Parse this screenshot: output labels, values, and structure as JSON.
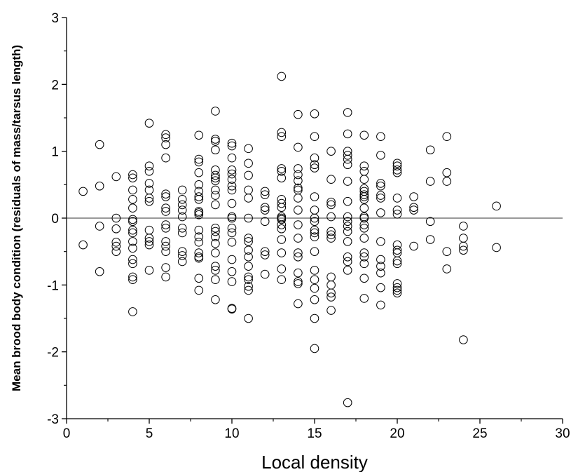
{
  "chart_data": {
    "type": "scatter",
    "title": "",
    "xlabel": "Local density",
    "ylabel": "Mean brood body condition (residuals of mass/tarsus length)",
    "xlim": [
      0,
      30
    ],
    "ylim": [
      -3,
      3
    ],
    "x_ticks": [
      "0",
      "5",
      "10",
      "15",
      "20",
      "25",
      "30"
    ],
    "y_ticks": [
      "-3",
      "-2",
      "-1",
      "0",
      "1",
      "2",
      "3"
    ],
    "reference_line_y": 0,
    "grid": false,
    "marker": "open-circle",
    "series": [
      {
        "points": [
          [
            1,
            0.4
          ],
          [
            1,
            -0.4
          ],
          [
            2,
            1.1
          ],
          [
            2,
            0.48
          ],
          [
            2,
            -0.12
          ],
          [
            2,
            -0.8
          ],
          [
            3,
            0.62
          ],
          [
            3,
            0.0
          ],
          [
            3,
            -0.16
          ],
          [
            3,
            -0.36
          ],
          [
            3,
            -0.42
          ],
          [
            3,
            -0.5
          ],
          [
            4,
            0.65
          ],
          [
            4,
            0.6
          ],
          [
            4,
            0.42
          ],
          [
            4,
            0.28
          ],
          [
            4,
            0.15
          ],
          [
            4,
            -0.02
          ],
          [
            4,
            -0.05
          ],
          [
            4,
            -0.18
          ],
          [
            4,
            -0.22
          ],
          [
            4,
            -0.35
          ],
          [
            4,
            -0.45
          ],
          [
            4,
            -0.62
          ],
          [
            4,
            -0.68
          ],
          [
            4,
            -0.88
          ],
          [
            4,
            -0.92
          ],
          [
            4,
            -1.4
          ],
          [
            5,
            1.42
          ],
          [
            5,
            0.78
          ],
          [
            5,
            0.7
          ],
          [
            5,
            0.52
          ],
          [
            5,
            0.42
          ],
          [
            5,
            0.3
          ],
          [
            5,
            0.25
          ],
          [
            5,
            -0.18
          ],
          [
            5,
            -0.3
          ],
          [
            5,
            -0.35
          ],
          [
            5,
            -0.4
          ],
          [
            5,
            -0.78
          ],
          [
            6,
            1.25
          ],
          [
            6,
            1.2
          ],
          [
            6,
            1.1
          ],
          [
            6,
            0.9
          ],
          [
            6,
            0.36
          ],
          [
            6,
            0.32
          ],
          [
            6,
            0.15
          ],
          [
            6,
            0.1
          ],
          [
            6,
            -0.1
          ],
          [
            6,
            -0.15
          ],
          [
            6,
            -0.35
          ],
          [
            6,
            -0.42
          ],
          [
            6,
            -0.5
          ],
          [
            6,
            -0.74
          ],
          [
            6,
            -0.88
          ],
          [
            7,
            0.42
          ],
          [
            7,
            0.28
          ],
          [
            7,
            0.2
          ],
          [
            7,
            0.12
          ],
          [
            7,
            0.02
          ],
          [
            7,
            -0.15
          ],
          [
            7,
            -0.22
          ],
          [
            7,
            -0.5
          ],
          [
            7,
            -0.56
          ],
          [
            7,
            -0.65
          ],
          [
            8,
            1.24
          ],
          [
            8,
            0.88
          ],
          [
            8,
            0.84
          ],
          [
            8,
            0.68
          ],
          [
            8,
            0.5
          ],
          [
            8,
            0.4
          ],
          [
            8,
            0.32
          ],
          [
            8,
            0.28
          ],
          [
            8,
            0.1
          ],
          [
            8,
            0.08
          ],
          [
            8,
            0.05
          ],
          [
            8,
            -0.18
          ],
          [
            8,
            -0.28
          ],
          [
            8,
            -0.36
          ],
          [
            8,
            -0.52
          ],
          [
            8,
            -0.58
          ],
          [
            8,
            -0.6
          ],
          [
            8,
            -0.9
          ],
          [
            8,
            -1.08
          ],
          [
            9,
            1.6
          ],
          [
            9,
            1.18
          ],
          [
            9,
            1.15
          ],
          [
            9,
            1.02
          ],
          [
            9,
            0.72
          ],
          [
            9,
            0.64
          ],
          [
            9,
            0.6
          ],
          [
            9,
            0.56
          ],
          [
            9,
            0.42
          ],
          [
            9,
            0.34
          ],
          [
            9,
            0.2
          ],
          [
            9,
            -0.15
          ],
          [
            9,
            -0.2
          ],
          [
            9,
            -0.28
          ],
          [
            9,
            -0.38
          ],
          [
            9,
            -0.52
          ],
          [
            9,
            -0.72
          ],
          [
            9,
            -0.78
          ],
          [
            9,
            -0.92
          ],
          [
            9,
            -1.22
          ],
          [
            10,
            1.12
          ],
          [
            10,
            1.08
          ],
          [
            10,
            0.9
          ],
          [
            10,
            0.72
          ],
          [
            10,
            0.66
          ],
          [
            10,
            0.58
          ],
          [
            10,
            0.48
          ],
          [
            10,
            0.42
          ],
          [
            10,
            0.22
          ],
          [
            10,
            0.02
          ],
          [
            10,
            0.0
          ],
          [
            10,
            -0.15
          ],
          [
            10,
            -0.22
          ],
          [
            10,
            -0.36
          ],
          [
            10,
            -0.62
          ],
          [
            10,
            -0.8
          ],
          [
            10,
            -0.95
          ],
          [
            10,
            -1.35
          ],
          [
            10,
            -1.36
          ],
          [
            11,
            1.04
          ],
          [
            11,
            0.82
          ],
          [
            11,
            0.64
          ],
          [
            11,
            0.42
          ],
          [
            11,
            0.3
          ],
          [
            11,
            0.0
          ],
          [
            11,
            -0.3
          ],
          [
            11,
            -0.35
          ],
          [
            11,
            -0.48
          ],
          [
            11,
            -0.58
          ],
          [
            11,
            -0.72
          ],
          [
            11,
            -0.88
          ],
          [
            11,
            -0.92
          ],
          [
            11,
            -1.02
          ],
          [
            11,
            -1.08
          ],
          [
            11,
            -1.5
          ],
          [
            12,
            0.4
          ],
          [
            12,
            0.35
          ],
          [
            12,
            0.16
          ],
          [
            12,
            0.12
          ],
          [
            12,
            -0.05
          ],
          [
            12,
            -0.5
          ],
          [
            12,
            -0.55
          ],
          [
            12,
            -0.84
          ],
          [
            13,
            2.12
          ],
          [
            13,
            1.28
          ],
          [
            13,
            1.22
          ],
          [
            13,
            0.74
          ],
          [
            13,
            0.7
          ],
          [
            13,
            0.6
          ],
          [
            13,
            0.28
          ],
          [
            13,
            0.22
          ],
          [
            13,
            0.16
          ],
          [
            13,
            0.02
          ],
          [
            13,
            0.0
          ],
          [
            13,
            -0.02
          ],
          [
            13,
            -0.1
          ],
          [
            13,
            -0.16
          ],
          [
            13,
            -0.32
          ],
          [
            13,
            -0.52
          ],
          [
            13,
            -0.76
          ],
          [
            13,
            -0.92
          ],
          [
            14,
            1.55
          ],
          [
            14,
            1.06
          ],
          [
            14,
            0.74
          ],
          [
            14,
            0.65
          ],
          [
            14,
            0.56
          ],
          [
            14,
            0.45
          ],
          [
            14,
            0.42
          ],
          [
            14,
            0.3
          ],
          [
            14,
            0.12
          ],
          [
            14,
            -0.1
          ],
          [
            14,
            -0.3
          ],
          [
            14,
            -0.52
          ],
          [
            14,
            -0.58
          ],
          [
            14,
            -0.82
          ],
          [
            14,
            -0.95
          ],
          [
            14,
            -0.98
          ],
          [
            14,
            -1.28
          ],
          [
            15,
            1.56
          ],
          [
            15,
            1.22
          ],
          [
            15,
            0.9
          ],
          [
            15,
            0.8
          ],
          [
            15,
            0.75
          ],
          [
            15,
            0.32
          ],
          [
            15,
            0.12
          ],
          [
            15,
            0.0
          ],
          [
            15,
            -0.05
          ],
          [
            15,
            -0.18
          ],
          [
            15,
            -0.22
          ],
          [
            15,
            -0.28
          ],
          [
            15,
            -0.5
          ],
          [
            15,
            -0.78
          ],
          [
            15,
            -0.92
          ],
          [
            15,
            -1.05
          ],
          [
            15,
            -1.22
          ],
          [
            15,
            -1.5
          ],
          [
            15,
            -1.95
          ],
          [
            16,
            1.0
          ],
          [
            16,
            0.58
          ],
          [
            16,
            0.24
          ],
          [
            16,
            0.2
          ],
          [
            16,
            0.02
          ],
          [
            16,
            -0.2
          ],
          [
            16,
            -0.25
          ],
          [
            16,
            -0.3
          ],
          [
            16,
            -0.88
          ],
          [
            16,
            -1.0
          ],
          [
            16,
            -1.12
          ],
          [
            16,
            -1.18
          ],
          [
            16,
            -1.38
          ],
          [
            17,
            1.58
          ],
          [
            17,
            1.26
          ],
          [
            17,
            1.0
          ],
          [
            17,
            0.94
          ],
          [
            17,
            0.88
          ],
          [
            17,
            0.8
          ],
          [
            17,
            0.55
          ],
          [
            17,
            0.25
          ],
          [
            17,
            0.02
          ],
          [
            17,
            -0.05
          ],
          [
            17,
            -0.12
          ],
          [
            17,
            -0.2
          ],
          [
            17,
            -0.35
          ],
          [
            17,
            -0.58
          ],
          [
            17,
            -0.65
          ],
          [
            17,
            -0.78
          ],
          [
            17,
            -2.76
          ],
          [
            18,
            1.24
          ],
          [
            18,
            0.78
          ],
          [
            18,
            0.7
          ],
          [
            18,
            0.58
          ],
          [
            18,
            0.44
          ],
          [
            18,
            0.4
          ],
          [
            18,
            0.35
          ],
          [
            18,
            0.32
          ],
          [
            18,
            0.28
          ],
          [
            18,
            0.15
          ],
          [
            18,
            0.02
          ],
          [
            18,
            0.0
          ],
          [
            18,
            -0.1
          ],
          [
            18,
            -0.15
          ],
          [
            18,
            -0.3
          ],
          [
            18,
            -0.52
          ],
          [
            18,
            -0.58
          ],
          [
            18,
            -0.68
          ],
          [
            18,
            -0.9
          ],
          [
            18,
            -1.2
          ],
          [
            19,
            1.22
          ],
          [
            19,
            0.94
          ],
          [
            19,
            0.52
          ],
          [
            19,
            0.48
          ],
          [
            19,
            0.34
          ],
          [
            19,
            0.3
          ],
          [
            19,
            0.08
          ],
          [
            19,
            -0.35
          ],
          [
            19,
            -0.62
          ],
          [
            19,
            -0.72
          ],
          [
            19,
            -0.82
          ],
          [
            19,
            -1.04
          ],
          [
            19,
            -1.3
          ],
          [
            20,
            0.82
          ],
          [
            20,
            0.78
          ],
          [
            20,
            0.72
          ],
          [
            20,
            0.68
          ],
          [
            20,
            0.3
          ],
          [
            20,
            0.12
          ],
          [
            20,
            0.06
          ],
          [
            20,
            -0.4
          ],
          [
            20,
            -0.48
          ],
          [
            20,
            -0.52
          ],
          [
            20,
            -0.64
          ],
          [
            20,
            -0.68
          ],
          [
            20,
            -0.98
          ],
          [
            20,
            -1.04
          ],
          [
            20,
            -1.08
          ],
          [
            20,
            -1.12
          ],
          [
            21,
            0.32
          ],
          [
            21,
            0.16
          ],
          [
            21,
            0.12
          ],
          [
            21,
            -0.42
          ],
          [
            22,
            1.02
          ],
          [
            22,
            0.55
          ],
          [
            22,
            -0.05
          ],
          [
            22,
            -0.32
          ],
          [
            23,
            1.22
          ],
          [
            23,
            0.68
          ],
          [
            23,
            0.55
          ],
          [
            23,
            -0.5
          ],
          [
            23,
            -0.76
          ],
          [
            24,
            -0.12
          ],
          [
            24,
            -0.3
          ],
          [
            24,
            -0.42
          ],
          [
            24,
            -0.48
          ],
          [
            24,
            -1.82
          ],
          [
            26,
            0.18
          ],
          [
            26,
            -0.44
          ]
        ]
      }
    ]
  }
}
